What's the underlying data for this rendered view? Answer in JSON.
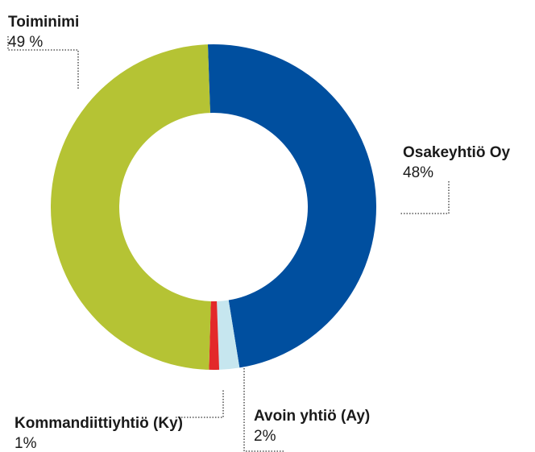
{
  "chart_data": {
    "type": "donut",
    "categories": [
      "Osakeyhtiö Oy",
      "Avoin yhtiö (Ay)",
      "Kommandiittiyhtiö (Ky)",
      "Toiminimi"
    ],
    "values": [
      48,
      2,
      1,
      49
    ],
    "value_labels": [
      "48%",
      "2%",
      "1%",
      "49 %"
    ],
    "colors": [
      "#004f9f",
      "#c6e6ef",
      "#e3292a",
      "#b5c334"
    ]
  }
}
